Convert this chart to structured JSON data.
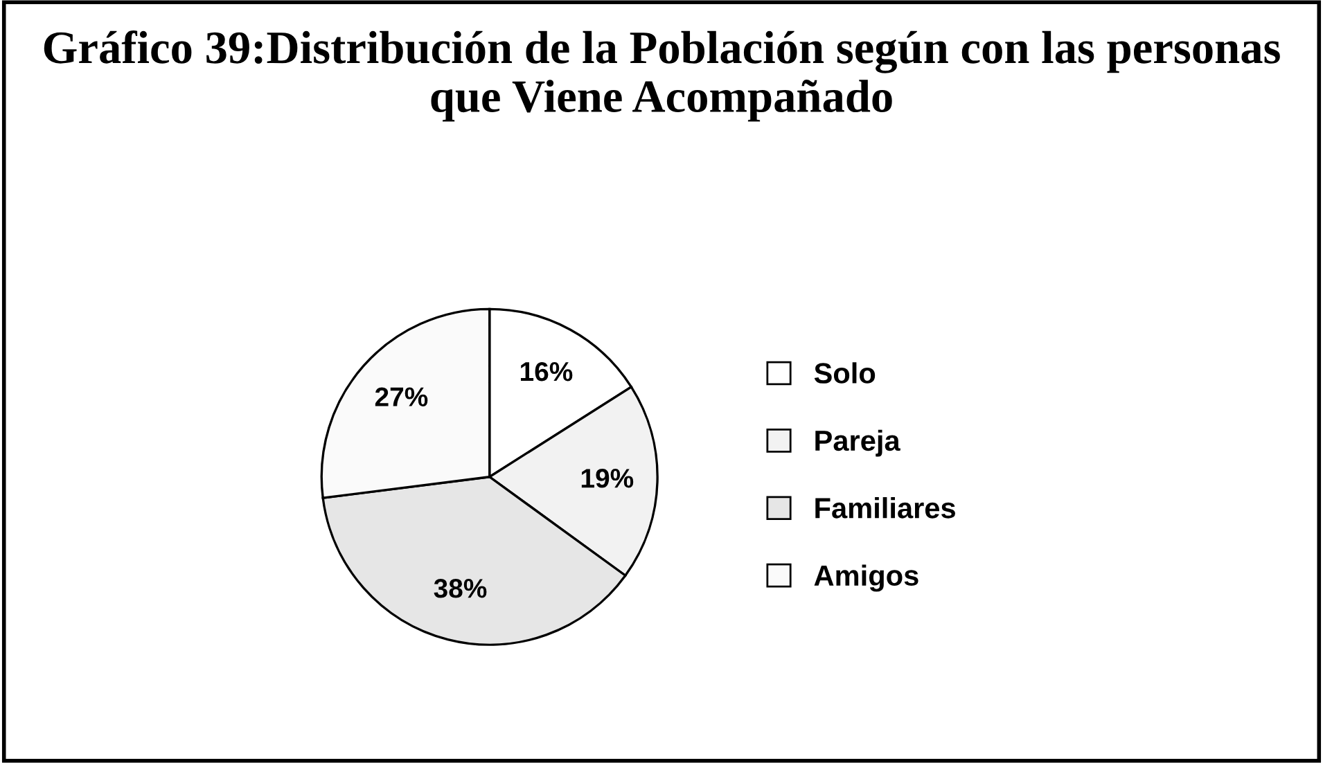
{
  "chart_data": {
    "type": "pie",
    "title": "Gráfico 39:Distribución de la Población según con las personas que Viene Acompañado",
    "categories": [
      "Solo",
      "Pareja",
      "Familiares",
      "Amigos"
    ],
    "values": [
      16,
      19,
      38,
      27
    ],
    "value_labels": [
      "16%",
      "19%",
      "38%",
      "27%"
    ],
    "colors": [
      "#ffffff",
      "#f2f2f2",
      "#e6e6e6",
      "#fafafa"
    ],
    "legend": "right"
  }
}
